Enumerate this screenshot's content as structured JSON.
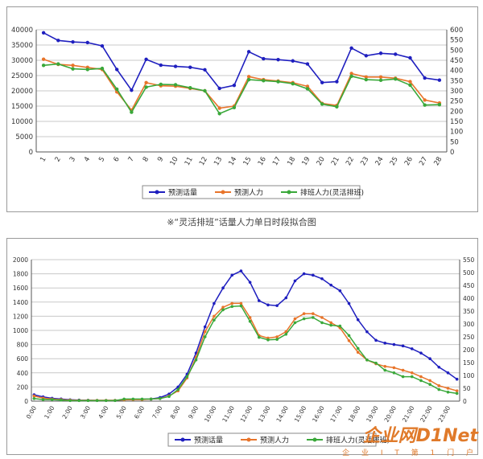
{
  "colors": {
    "forecast": "#1f1fbf",
    "staff": "#e8742a",
    "flex": "#3aa83a",
    "grid": "#c8c8c8",
    "axis": "#555555"
  },
  "caption": "※“灵活排班”话量人力单日时段拟合图",
  "watermark": {
    "brand": "企业网D1Net",
    "sub": "企 业 I T 第 1 门 户"
  },
  "chart_data": [
    {
      "type": "line",
      "title": "",
      "x": [
        "1",
        "2",
        "3",
        "4",
        "5",
        "6",
        "7",
        "8",
        "9",
        "10",
        "11",
        "12",
        "13",
        "14",
        "15",
        "16",
        "17",
        "18",
        "19",
        "20",
        "21",
        "22",
        "23",
        "24",
        "25",
        "26",
        "27",
        "28"
      ],
      "ylim_left": [
        0,
        40000
      ],
      "yticks_left": [
        0,
        5000,
        10000,
        15000,
        20000,
        25000,
        30000,
        35000,
        40000
      ],
      "ylim_right": [
        0,
        600
      ],
      "yticks_right": [
        0,
        50,
        100,
        150,
        200,
        250,
        300,
        350,
        400,
        450,
        500,
        550,
        600
      ],
      "grid": "horizontal",
      "legend": "bottom-center",
      "series": [
        {
          "name": "预测话量",
          "axis": "left",
          "color_key": "forecast",
          "values": [
            39000,
            36500,
            36000,
            35800,
            34700,
            27000,
            20200,
            30300,
            28400,
            28000,
            27700,
            26900,
            20800,
            21800,
            32800,
            30500,
            30200,
            29800,
            28800,
            22700,
            23000,
            34000,
            31500,
            32300,
            32000,
            30800,
            24200,
            23500
          ]
        },
        {
          "name": "预测人力",
          "axis": "right",
          "color_key": "staff",
          "values": [
            455,
            430,
            425,
            415,
            405,
            295,
            205,
            340,
            325,
            323,
            312,
            300,
            215,
            225,
            370,
            355,
            348,
            340,
            322,
            238,
            228,
            385,
            368,
            368,
            362,
            345,
            255,
            240
          ]
        },
        {
          "name": "排班人力(灵活排班)",
          "axis": "right",
          "color_key": "flex",
          "values": [
            425,
            432,
            408,
            405,
            410,
            308,
            195,
            318,
            332,
            330,
            315,
            300,
            188,
            218,
            355,
            350,
            345,
            335,
            310,
            235,
            222,
            372,
            355,
            352,
            358,
            328,
            230,
            232
          ]
        }
      ]
    },
    {
      "type": "line",
      "title": "",
      "x": [
        "0:00",
        "0:30",
        "1:00",
        "1:30",
        "2:00",
        "2:30",
        "3:00",
        "3:30",
        "4:00",
        "4:30",
        "5:00",
        "5:30",
        "6:00",
        "6:30",
        "7:00",
        "7:30",
        "8:00",
        "8:30",
        "9:00",
        "9:30",
        "10:00",
        "10:30",
        "11:00",
        "11:30",
        "12:00",
        "12:30",
        "13:00",
        "13:30",
        "14:00",
        "14:30",
        "15:00",
        "15:30",
        "16:00",
        "16:30",
        "17:00",
        "17:30",
        "18:00",
        "18:30",
        "19:00",
        "19:30",
        "20:00",
        "20:30",
        "21:00",
        "21:30",
        "22:00",
        "22:30",
        "23:00",
        "23:30"
      ],
      "xticks": [
        "0:00",
        "1:00",
        "2:00",
        "3:00",
        "4:00",
        "5:00",
        "6:00",
        "7:00",
        "8:00",
        "9:00",
        "10:00",
        "11:00",
        "12:00",
        "13:00",
        "14:00",
        "15:00",
        "16:00",
        "17:00",
        "18:00",
        "19:00",
        "20:00",
        "21:00",
        "22:00",
        "23:00"
      ],
      "ylim_left": [
        0,
        2000
      ],
      "yticks_left": [
        0,
        200,
        400,
        600,
        800,
        1000,
        1200,
        1400,
        1600,
        1800,
        2000
      ],
      "ylim_right": [
        0,
        550
      ],
      "yticks_right": [
        0,
        50,
        100,
        150,
        200,
        250,
        300,
        350,
        400,
        450,
        500,
        550
      ],
      "grid": "horizontal",
      "legend": "bottom-center",
      "series": [
        {
          "name": "预测话量",
          "axis": "left",
          "color_key": "forecast",
          "values": [
            90,
            60,
            40,
            30,
            20,
            15,
            12,
            10,
            10,
            10,
            20,
            25,
            25,
            30,
            50,
            100,
            200,
            380,
            680,
            1050,
            1380,
            1600,
            1780,
            1840,
            1680,
            1420,
            1360,
            1350,
            1460,
            1700,
            1800,
            1780,
            1730,
            1640,
            1560,
            1380,
            1150,
            980,
            860,
            820,
            800,
            780,
            740,
            680,
            600,
            480,
            400,
            310
          ]
        },
        {
          "name": "预测人力",
          "axis": "right",
          "color_key": "staff",
          "values": [
            20,
            12,
            8,
            6,
            4,
            3,
            3,
            3,
            3,
            3,
            5,
            6,
            6,
            8,
            10,
            20,
            40,
            90,
            170,
            270,
            330,
            365,
            380,
            380,
            325,
            255,
            245,
            250,
            270,
            320,
            340,
            340,
            325,
            305,
            285,
            235,
            190,
            160,
            145,
            135,
            130,
            120,
            110,
            95,
            80,
            60,
            50,
            40
          ]
        },
        {
          "name": "排班人力(灵活排班)",
          "axis": "right",
          "color_key": "flex",
          "values": [
            10,
            6,
            6,
            4,
            2,
            2,
            2,
            2,
            2,
            2,
            8,
            8,
            8,
            8,
            10,
            18,
            45,
            95,
            160,
            250,
            315,
            355,
            368,
            370,
            310,
            248,
            238,
            240,
            260,
            305,
            320,
            325,
            305,
            295,
            292,
            255,
            205,
            160,
            148,
            120,
            110,
            95,
            95,
            80,
            65,
            45,
            35,
            30
          ]
        }
      ]
    }
  ]
}
